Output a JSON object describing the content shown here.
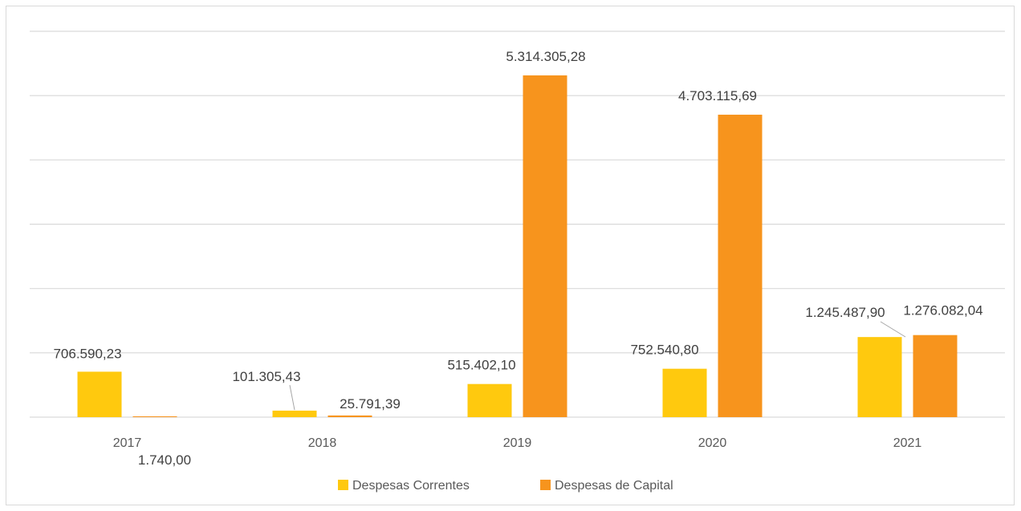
{
  "chart_data": {
    "type": "bar",
    "categories": [
      "2017",
      "2018",
      "2019",
      "2020",
      "2021"
    ],
    "series": [
      {
        "name": "Despesas Correntes",
        "color": "#ffc90e",
        "values": [
          706590.23,
          101305.43,
          515402.1,
          752540.8,
          1245487.9
        ],
        "labels": [
          "706.590,23",
          "101.305,43",
          "515.402,10",
          "752.540,80",
          "1.245.487,90"
        ]
      },
      {
        "name": "Despesas de Capital",
        "color": "#f7941d",
        "values": [
          1740.0,
          25791.39,
          5314305.28,
          4703115.69,
          1276082.04
        ],
        "labels": [
          "1.740,00",
          "25.791,39",
          "5.314.305,28",
          "4.703.115,69",
          "1.276.082,04"
        ]
      }
    ],
    "title": "",
    "xlabel": "",
    "ylabel": "",
    "ylim": [
      0,
      6000000
    ],
    "grid": true,
    "y_tick_labels_shown": false,
    "legend_position": "bottom"
  }
}
